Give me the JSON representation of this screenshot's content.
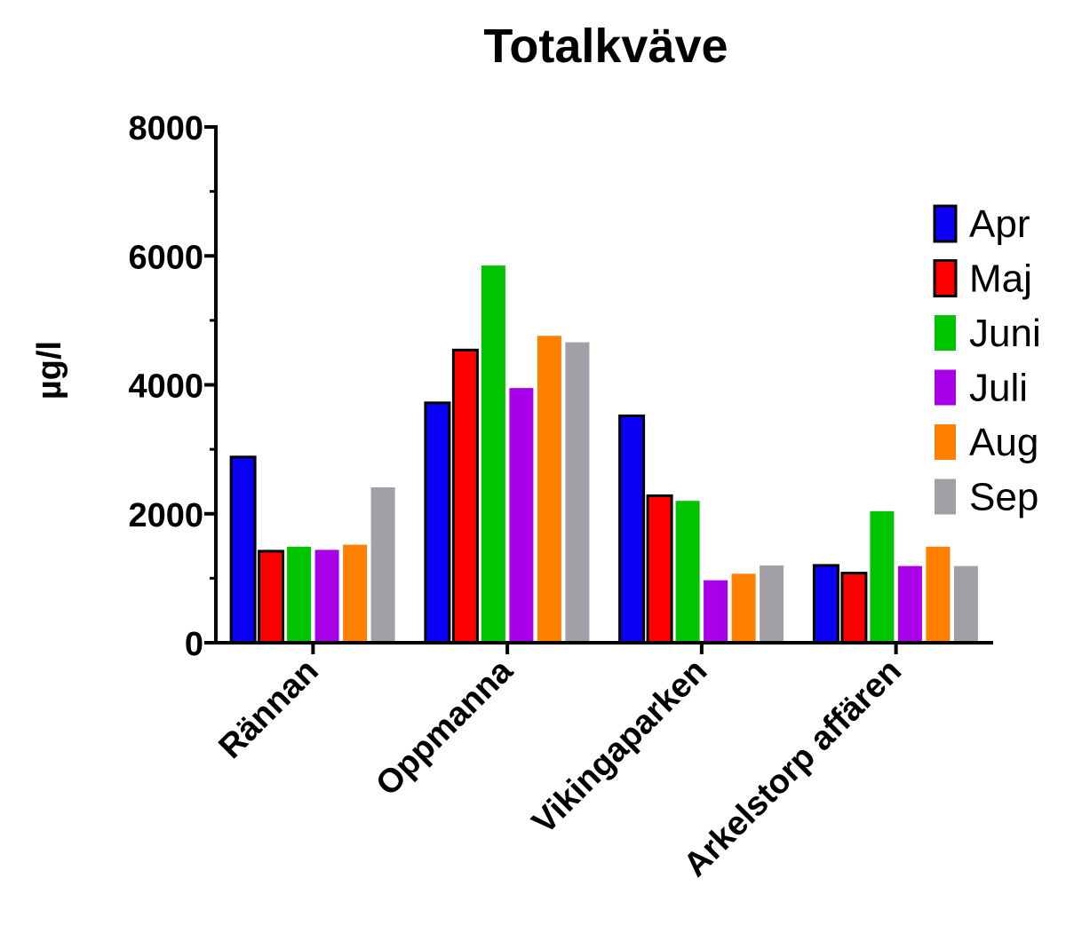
{
  "chart_data": {
    "type": "bar",
    "title": "Totalkväve",
    "xlabel": "",
    "ylabel": "µg/l",
    "ylim": [
      0,
      8000
    ],
    "yticks": [
      "0",
      "2000",
      "4000",
      "6000",
      "8000"
    ],
    "categories": [
      "Rännan",
      "Oppmanna",
      "Vikingaparken",
      "Arkelstorp affären"
    ],
    "series": [
      {
        "name": "Apr",
        "color": "#0a00f5",
        "outlined": true,
        "values": [
          2880,
          3720,
          3520,
          1200
        ]
      },
      {
        "name": "Maj",
        "color": "#ff0000",
        "outlined": true,
        "values": [
          1420,
          4540,
          2280,
          1080
        ]
      },
      {
        "name": "Juni",
        "color": "#00c400",
        "outlined": false,
        "values": [
          1490,
          5850,
          2200,
          2040
        ]
      },
      {
        "name": "Juli",
        "color": "#a800e8",
        "outlined": false,
        "values": [
          1440,
          3950,
          970,
          1190
        ]
      },
      {
        "name": "Aug",
        "color": "#ff8000",
        "outlined": false,
        "values": [
          1520,
          4760,
          1070,
          1490
        ]
      },
      {
        "name": "Sep",
        "color": "#a0a0a6",
        "outlined": false,
        "values": [
          2410,
          4660,
          1200,
          1190
        ]
      }
    ],
    "grid": false,
    "legend_position": "right"
  }
}
